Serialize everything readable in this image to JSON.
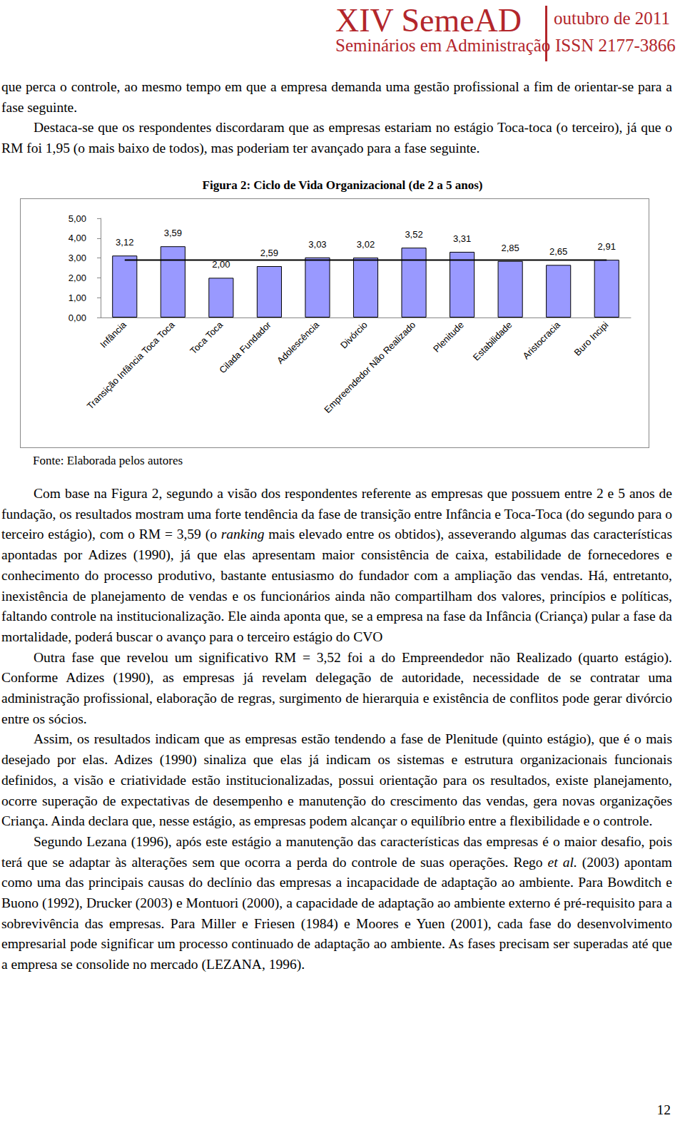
{
  "header": {
    "event": "XIV SemeAD",
    "date": "outubro de 2011",
    "subtitle": "Seminários em Administração",
    "issn": "ISSN 2177-3866"
  },
  "paragraphs_before": [
    [
      "que perca o controle, ao mesmo tempo em que a empresa demanda uma gestão profissional a fim de orientar-se para a fase seguinte."
    ],
    [
      "Destaca-se que os respondentes discordaram que as empresas estariam no estágio Toca-toca (o terceiro), já que o RM foi 1,95 (o mais baixo de todos), mas poderiam ter avançado para a fase seguinte."
    ]
  ],
  "figure": {
    "caption": "Figura 2: Ciclo de Vida Organizacional (de 2 a 5 anos)",
    "source": "Fonte: Elaborada pelos autores"
  },
  "chart_data": {
    "type": "bar",
    "categories": [
      "Infância",
      "Transição Infância Toca Toca",
      "Toca Toca",
      "Cilada Fundador",
      "Adolescência",
      "Divórcio",
      "Empreendedor Não Realizado",
      "Plenitude",
      "Estabilidade",
      "Aristocracia",
      "Buro Incipi"
    ],
    "values": [
      3.12,
      3.59,
      2.0,
      2.59,
      3.03,
      3.02,
      3.52,
      3.31,
      2.85,
      2.65,
      2.91
    ],
    "value_labels": [
      "3,12",
      "3,59",
      "2,00",
      "2,59",
      "3,03",
      "3,02",
      "3,52",
      "3,31",
      "2,85",
      "2,65",
      "2,91"
    ],
    "mean_line": 2.9,
    "color": "#9999ff",
    "ylim": [
      0,
      5
    ],
    "yticks": [
      {
        "value": 0,
        "label": "0,00"
      },
      {
        "value": 1,
        "label": "1,00"
      },
      {
        "value": 2,
        "label": "2,00"
      },
      {
        "value": 3,
        "label": "3,00"
      },
      {
        "value": 4,
        "label": "4,00"
      },
      {
        "value": 5,
        "label": "5,00"
      }
    ],
    "grid": false,
    "data_labels": true
  },
  "paragraphs_after": [
    [
      "Com base na Figura 2, segundo a visão dos respondentes referente as empresas que possuem entre 2 e 5 anos de fundação, os resultados mostram uma forte tendência da fase de transição entre Infância e Toca-Toca (do segundo para o terceiro estágio), com o RM = 3,59 (o ",
      {
        "italic": "ranking"
      },
      " mais elevado entre os obtidos), asseverando algumas das características apontadas por Adizes (1990), já que elas apresentam maior consistência de caixa, estabilidade de fornecedores e conhecimento do processo produtivo, bastante entusiasmo do fundador com a ampliação das vendas. Há, entretanto, inexistência de planejamento de vendas e os funcionários ainda não compartilham dos valores, princípios e políticas, faltando controle na institucionalização. Ele ainda aponta que, se a empresa na fase da Infância (Criança) pular a fase da mortalidade, poderá buscar o avanço para o terceiro estágio do CVO"
    ],
    [
      "Outra fase que revelou um significativo RM = 3,52 foi a do Empreendedor não Realizado (quarto estágio). Conforme Adizes (1990), as empresas já revelam delegação de autoridade, necessidade de se contratar uma administração profissional, elaboração de regras, surgimento de hierarquia e existência de conflitos pode gerar divórcio entre os sócios."
    ],
    [
      "Assim, os resultados indicam que as empresas estão tendendo a fase de Plenitude (quinto estágio), que é o mais desejado por elas. Adizes (1990) sinaliza que elas já indicam os sistemas e estrutura organizacionais funcionais definidos, a visão e criatividade estão institucionalizadas, possui orientação para os resultados, existe planejamento, ocorre superação de expectativas de desempenho e manutenção do crescimento das vendas, gera novas organizações Criança. Ainda declara que, nesse estágio, as empresas podem alcançar o equilíbrio entre a flexibilidade e o controle."
    ],
    [
      "Segundo Lezana (1996), após este estágio a manutenção das características das empresas é o maior desafio, pois terá que se adaptar às alterações sem que ocorra a perda do controle de suas operações. Rego ",
      {
        "italic": "et al."
      },
      " (2003) apontam como uma das principais causas do declínio das empresas a incapacidade de adaptação ao ambiente. Para Bowditch e Buono (1992), Drucker (2003) e Montuori (2000), a capacidade de adaptação ao ambiente externo é pré-requisito para a sobrevivência das empresas. Para Miller e Friesen (1984) e Moores e Yuen (2001), cada fase do desenvolvimento empresarial pode significar um processo continuado de adaptação ao ambiente. As fases precisam ser superadas até que a empresa se consolide no mercado (LEZANA, 1996)."
    ]
  ],
  "page_number": "12"
}
